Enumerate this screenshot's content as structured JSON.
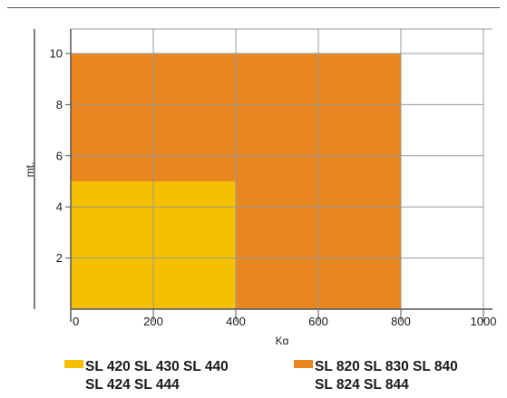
{
  "chart_data": {
    "type": "area",
    "xlabel": "Kg",
    "ylabel": "mt.",
    "xlim": [
      0,
      1000
    ],
    "ylim": [
      0,
      10
    ],
    "x_ticks": [
      0,
      200,
      400,
      600,
      800,
      1000
    ],
    "y_ticks": [
      2,
      4,
      6,
      8,
      10
    ],
    "grid": true,
    "legend_position": "bottom",
    "series": [
      {
        "name": "SL 820  SL 830  SL 840 / SL 824  SL 844",
        "color": "#e8861f",
        "x_max": 800,
        "y_max": 10
      },
      {
        "name": "SL 420  SL 430  SL 440 / SL 424  SL 444",
        "color": "#f5c000",
        "x_max": 400,
        "y_max": 5
      }
    ]
  },
  "legend": [
    {
      "color": "#f5c000",
      "line1": "SL 420  SL 430  SL 440",
      "line2": "SL 424  SL 444"
    },
    {
      "color": "#e8861f",
      "line1": "SL 820  SL 830  SL 840",
      "line2": "SL 824  SL 844"
    }
  ]
}
